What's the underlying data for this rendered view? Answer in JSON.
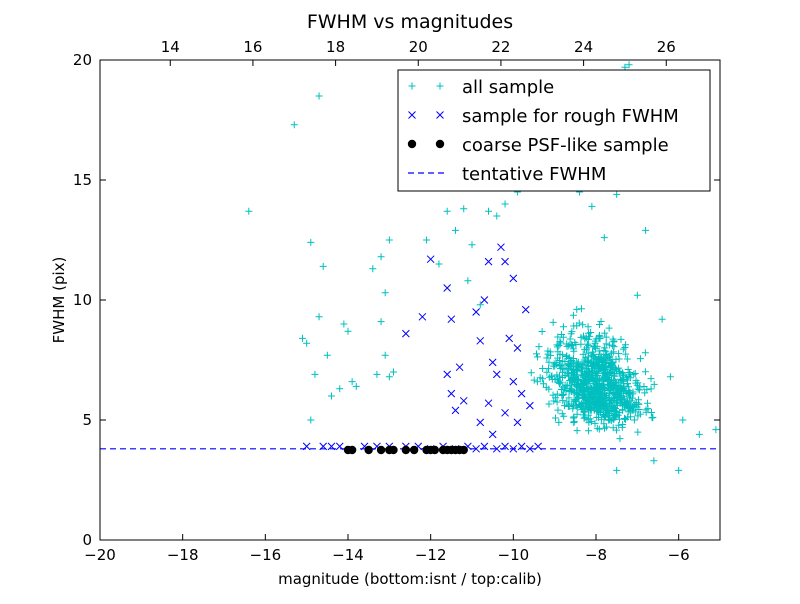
{
  "colors": {
    "all_sample": "#00bfbf",
    "rough_sample": "#0000ff",
    "psf_sample": "#000000",
    "tentative_line": "#0000ff",
    "axes": "#000000",
    "background": "#ffffff"
  },
  "chart_data": {
    "type": "scatter",
    "title": "FWHM vs magnitudes",
    "xlabel": "magnitude (bottom:isnt / top:calib)",
    "ylabel": "FWHM (pix)",
    "xlim": [
      -20,
      -5
    ],
    "ylim": [
      0,
      20
    ],
    "x_ticks": [
      -20,
      -18,
      -16,
      -14,
      -12,
      -10,
      -8,
      -6
    ],
    "x_tick_labels": [
      "−20",
      "−18",
      "−16",
      "−14",
      "−12",
      "−10",
      "−8",
      "−6"
    ],
    "y_ticks": [
      0,
      5,
      10,
      15,
      20
    ],
    "y_tick_labels": [
      "0",
      "5",
      "10",
      "15",
      "20"
    ],
    "top_axis": {
      "label_values": [
        14,
        16,
        18,
        20,
        22,
        24,
        26
      ],
      "tick_labels": [
        "14",
        "16",
        "18",
        "20",
        "22",
        "24",
        "26"
      ],
      "offset": 32.3
    },
    "grid": false,
    "legend_position": "top-right",
    "series": [
      {
        "name": "all sample",
        "marker": "+",
        "color": "#00bfbf",
        "points": [
          [
            -16.4,
            13.7
          ],
          [
            -15.3,
            17.3
          ],
          [
            -14.7,
            18.5
          ],
          [
            -15.1,
            8.4
          ],
          [
            -14.9,
            5.0
          ],
          [
            -14.8,
            6.9
          ],
          [
            -14.9,
            12.4
          ],
          [
            -14.6,
            11.4
          ],
          [
            -14.7,
            9.3
          ],
          [
            -14.5,
            7.7
          ],
          [
            -14.4,
            6.0
          ],
          [
            -14.1,
            9.0
          ],
          [
            -14.0,
            8.7
          ],
          [
            -13.9,
            6.6
          ],
          [
            -13.8,
            6.4
          ],
          [
            -13.4,
            11.3
          ],
          [
            -13.2,
            11.8
          ],
          [
            -13.0,
            12.5
          ],
          [
            -13.1,
            10.3
          ],
          [
            -13.2,
            9.1
          ],
          [
            -13.1,
            7.7
          ],
          [
            -13.3,
            6.9
          ],
          [
            -13.0,
            6.8
          ],
          [
            -12.9,
            7.0
          ],
          [
            -15.0,
            8.2
          ],
          [
            -14.2,
            6.3
          ],
          [
            -12.1,
            12.5
          ],
          [
            -11.6,
            13.7
          ],
          [
            -11.2,
            13.8
          ],
          [
            -11.4,
            12.9
          ],
          [
            -11.0,
            12.3
          ],
          [
            -10.6,
            13.7
          ],
          [
            -10.4,
            13.5
          ],
          [
            -10.2,
            14.0
          ],
          [
            -9.9,
            14.5
          ],
          [
            -9.6,
            15.2
          ],
          [
            -9.3,
            16.2
          ],
          [
            -9.0,
            17.0
          ],
          [
            -8.9,
            18.0
          ],
          [
            -8.7,
            16.6
          ],
          [
            -8.4,
            14.5
          ],
          [
            -8.1,
            13.9
          ],
          [
            -7.8,
            12.6
          ],
          [
            -7.4,
            18.9
          ],
          [
            -7.3,
            19.7
          ],
          [
            -7.2,
            19.8
          ],
          [
            -7.7,
            15.0
          ],
          [
            -7.5,
            14.4
          ],
          [
            -7.0,
            10.2
          ],
          [
            -6.8,
            12.9
          ],
          [
            -6.4,
            9.2
          ],
          [
            -6.2,
            6.8
          ],
          [
            -5.9,
            5.0
          ],
          [
            -5.5,
            4.4
          ],
          [
            -5.1,
            4.6
          ],
          [
            -6.6,
            3.3
          ],
          [
            -7.5,
            2.9
          ],
          [
            -6.0,
            2.9
          ],
          [
            -11.8,
            11.5
          ],
          [
            -10.8,
            9.8
          ],
          [
            -11.1,
            10.8
          ]
        ]
      },
      {
        "name": "sample for rough FWHM",
        "marker": "x",
        "color": "#0000ff",
        "points": [
          [
            -12.0,
            11.7
          ],
          [
            -11.6,
            10.5
          ],
          [
            -11.5,
            9.2
          ],
          [
            -12.6,
            8.6
          ],
          [
            -12.2,
            9.3
          ],
          [
            -11.3,
            7.2
          ],
          [
            -11.6,
            6.9
          ],
          [
            -11.5,
            6.1
          ],
          [
            -11.2,
            5.8
          ],
          [
            -11.4,
            5.4
          ],
          [
            -10.9,
            9.5
          ],
          [
            -10.8,
            8.3
          ],
          [
            -10.7,
            10.0
          ],
          [
            -10.6,
            11.6
          ],
          [
            -10.5,
            7.4
          ],
          [
            -10.4,
            6.9
          ],
          [
            -10.6,
            5.7
          ],
          [
            -10.3,
            12.2
          ],
          [
            -10.2,
            11.6
          ],
          [
            -10.0,
            10.9
          ],
          [
            -10.1,
            8.4
          ],
          [
            -9.9,
            8.0
          ],
          [
            -10.0,
            6.6
          ],
          [
            -9.8,
            6.1
          ],
          [
            -10.2,
            5.3
          ],
          [
            -9.9,
            4.9
          ],
          [
            -9.7,
            9.6
          ],
          [
            -9.6,
            5.6
          ],
          [
            -10.5,
            4.4
          ],
          [
            -10.8,
            4.9
          ],
          [
            -15.0,
            3.9
          ],
          [
            -14.6,
            3.9
          ],
          [
            -14.4,
            3.9
          ],
          [
            -14.2,
            3.9
          ],
          [
            -13.6,
            3.9
          ],
          [
            -13.3,
            3.9
          ],
          [
            -13.0,
            3.9
          ],
          [
            -12.6,
            3.9
          ],
          [
            -12.3,
            3.9
          ],
          [
            -12.0,
            3.8
          ],
          [
            -11.7,
            3.9
          ],
          [
            -11.4,
            3.8
          ],
          [
            -11.1,
            3.9
          ],
          [
            -10.9,
            3.8
          ],
          [
            -10.7,
            3.9
          ],
          [
            -10.4,
            3.8
          ],
          [
            -10.2,
            3.9
          ],
          [
            -10.0,
            3.8
          ],
          [
            -9.8,
            3.9
          ],
          [
            -9.6,
            3.8
          ],
          [
            -9.4,
            3.9
          ]
        ]
      },
      {
        "name": "coarse PSF-like sample",
        "marker": "o",
        "color": "#000000",
        "points": [
          [
            -14.0,
            3.75
          ],
          [
            -13.9,
            3.75
          ],
          [
            -13.5,
            3.75
          ],
          [
            -13.2,
            3.75
          ],
          [
            -13.0,
            3.75
          ],
          [
            -12.9,
            3.75
          ],
          [
            -12.6,
            3.75
          ],
          [
            -12.4,
            3.75
          ],
          [
            -12.1,
            3.75
          ],
          [
            -12.0,
            3.75
          ],
          [
            -11.9,
            3.75
          ],
          [
            -11.7,
            3.75
          ],
          [
            -11.6,
            3.75
          ],
          [
            -11.5,
            3.75
          ],
          [
            -11.4,
            3.75
          ],
          [
            -11.3,
            3.75
          ],
          [
            -11.2,
            3.75
          ]
        ]
      },
      {
        "name": "tentative FWHM",
        "marker": "--",
        "color": "#0000ff",
        "value": 3.8
      }
    ],
    "dense_cloud": {
      "series": "all sample",
      "description_center_x": -8.0,
      "count": 900
    }
  },
  "legend": {
    "items": [
      {
        "label": "all sample"
      },
      {
        "label": "sample for rough FWHM"
      },
      {
        "label": "coarse PSF-like sample"
      },
      {
        "label": "tentative FWHM"
      }
    ]
  }
}
